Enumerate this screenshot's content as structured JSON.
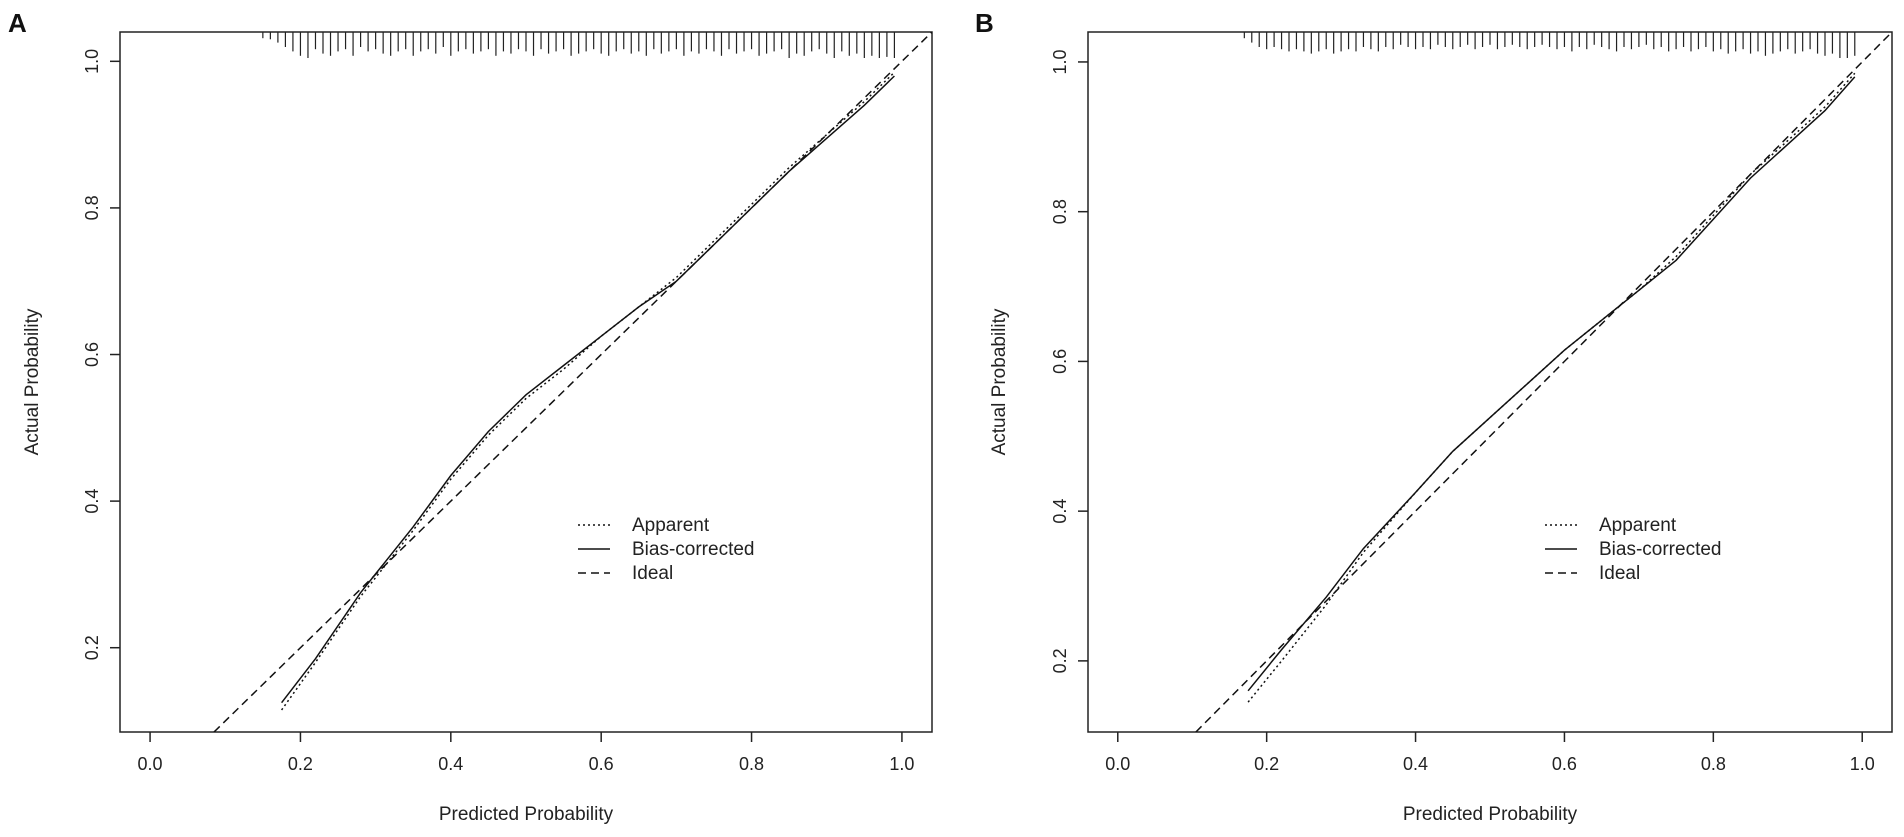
{
  "chart_data": [
    {
      "panel_label": "A",
      "type": "line",
      "xlabel": "Predicted Probability",
      "ylabel": "Actual Probability",
      "xlim": [
        -0.04,
        1.04
      ],
      "ylim": [
        0.085,
        1.04
      ],
      "x_ticks": [
        "0.0",
        "0.2",
        "0.4",
        "0.6",
        "0.8",
        "1.0"
      ],
      "y_ticks": [
        "0.2",
        "0.4",
        "0.6",
        "0.8",
        "1.0"
      ],
      "x_tick_values": [
        0.0,
        0.2,
        0.4,
        0.6,
        0.8,
        1.0
      ],
      "y_tick_values": [
        0.2,
        0.4,
        0.6,
        0.8,
        1.0
      ],
      "legend": {
        "position": "center-right",
        "entries": [
          "Apparent",
          "Bias-corrected",
          "Ideal"
        ]
      },
      "series": [
        {
          "name": "Apparent",
          "style": "dotted",
          "x": [
            0.175,
            0.22,
            0.28,
            0.35,
            0.4,
            0.45,
            0.5,
            0.55,
            0.6,
            0.65,
            0.7,
            0.75,
            0.8,
            0.85,
            0.9,
            0.95,
            0.99
          ],
          "y": [
            0.115,
            0.18,
            0.27,
            0.36,
            0.43,
            0.49,
            0.54,
            0.58,
            0.625,
            0.665,
            0.705,
            0.755,
            0.805,
            0.855,
            0.9,
            0.945,
            0.985
          ]
        },
        {
          "name": "Bias-corrected",
          "style": "solid",
          "x": [
            0.175,
            0.22,
            0.28,
            0.35,
            0.4,
            0.45,
            0.5,
            0.55,
            0.6,
            0.65,
            0.7,
            0.75,
            0.8,
            0.85,
            0.9,
            0.95,
            0.99
          ],
          "y": [
            0.125,
            0.185,
            0.275,
            0.365,
            0.435,
            0.495,
            0.545,
            0.585,
            0.625,
            0.665,
            0.7,
            0.75,
            0.8,
            0.85,
            0.895,
            0.94,
            0.98
          ]
        },
        {
          "name": "Ideal",
          "style": "dashed",
          "x": [
            0.085,
            1.04
          ],
          "y": [
            0.085,
            1.04
          ]
        }
      ],
      "rug": [
        0.15,
        0.16,
        0.17,
        0.18,
        0.19,
        0.2,
        0.21,
        0.22,
        0.23,
        0.24,
        0.25,
        0.26,
        0.27,
        0.28,
        0.29,
        0.3,
        0.31,
        0.32,
        0.33,
        0.34,
        0.35,
        0.36,
        0.37,
        0.38,
        0.39,
        0.4,
        0.41,
        0.42,
        0.43,
        0.44,
        0.45,
        0.46,
        0.47,
        0.48,
        0.49,
        0.5,
        0.51,
        0.52,
        0.53,
        0.54,
        0.55,
        0.56,
        0.57,
        0.58,
        0.59,
        0.6,
        0.61,
        0.62,
        0.63,
        0.64,
        0.65,
        0.66,
        0.67,
        0.68,
        0.69,
        0.7,
        0.71,
        0.72,
        0.73,
        0.74,
        0.75,
        0.76,
        0.77,
        0.78,
        0.79,
        0.8,
        0.81,
        0.82,
        0.83,
        0.84,
        0.85,
        0.86,
        0.87,
        0.88,
        0.89,
        0.9,
        0.91,
        0.92,
        0.93,
        0.94,
        0.95,
        0.96,
        0.97,
        0.98,
        0.99
      ],
      "rug_heights": [
        0.1,
        0.15,
        0.3,
        0.5,
        0.7,
        0.9,
        1.0,
        0.6,
        0.8,
        0.9,
        0.7,
        0.6,
        0.9,
        0.5,
        0.7,
        0.6,
        0.8,
        0.9,
        0.7,
        0.6,
        0.9,
        0.7,
        0.6,
        0.8,
        0.5,
        0.9,
        0.7,
        0.6,
        0.8,
        0.7,
        0.6,
        0.9,
        0.7,
        0.8,
        0.6,
        0.7,
        0.9,
        0.6,
        0.8,
        0.7,
        0.6,
        0.9,
        0.8,
        0.7,
        0.6,
        0.8,
        0.9,
        0.7,
        0.6,
        0.8,
        0.7,
        0.9,
        0.6,
        0.8,
        0.7,
        0.6,
        0.9,
        0.7,
        0.8,
        0.6,
        0.7,
        0.9,
        0.6,
        0.8,
        0.7,
        0.6,
        0.9,
        0.8,
        0.7,
        0.6,
        1.0,
        0.8,
        0.9,
        0.7,
        0.6,
        0.8,
        1.0,
        0.7,
        0.9,
        0.8,
        1.0,
        0.9,
        1.0,
        0.95,
        1.0
      ]
    },
    {
      "panel_label": "B",
      "type": "line",
      "xlabel": "Predicted Probability",
      "ylabel": "Actual Probability",
      "xlim": [
        -0.04,
        1.04
      ],
      "ylim": [
        0.105,
        1.04
      ],
      "x_ticks": [
        "0.0",
        "0.2",
        "0.4",
        "0.6",
        "0.8",
        "1.0"
      ],
      "y_ticks": [
        "0.2",
        "0.4",
        "0.6",
        "0.8",
        "1.0"
      ],
      "x_tick_values": [
        0.0,
        0.2,
        0.4,
        0.6,
        0.8,
        1.0
      ],
      "y_tick_values": [
        0.2,
        0.4,
        0.6,
        0.8,
        1.0
      ],
      "legend": {
        "position": "center-right",
        "entries": [
          "Apparent",
          "Bias-corrected",
          "Ideal"
        ]
      },
      "series": [
        {
          "name": "Apparent",
          "style": "dotted",
          "x": [
            0.175,
            0.22,
            0.28,
            0.33,
            0.4,
            0.45,
            0.5,
            0.55,
            0.6,
            0.65,
            0.7,
            0.75,
            0.8,
            0.85,
            0.9,
            0.95,
            0.99
          ],
          "y": [
            0.145,
            0.2,
            0.275,
            0.345,
            0.425,
            0.48,
            0.525,
            0.57,
            0.615,
            0.655,
            0.695,
            0.74,
            0.795,
            0.85,
            0.895,
            0.94,
            0.985
          ]
        },
        {
          "name": "Bias-corrected",
          "style": "solid",
          "x": [
            0.175,
            0.22,
            0.28,
            0.33,
            0.4,
            0.45,
            0.5,
            0.55,
            0.6,
            0.65,
            0.7,
            0.75,
            0.8,
            0.85,
            0.9,
            0.95,
            0.99
          ],
          "y": [
            0.16,
            0.215,
            0.285,
            0.35,
            0.425,
            0.48,
            0.525,
            0.57,
            0.615,
            0.655,
            0.695,
            0.735,
            0.79,
            0.845,
            0.89,
            0.935,
            0.98
          ]
        },
        {
          "name": "Ideal",
          "style": "dashed",
          "x": [
            0.105,
            1.04
          ],
          "y": [
            0.105,
            1.04
          ]
        }
      ],
      "rug": [
        0.17,
        0.18,
        0.19,
        0.2,
        0.21,
        0.22,
        0.23,
        0.24,
        0.25,
        0.26,
        0.27,
        0.28,
        0.29,
        0.3,
        0.31,
        0.32,
        0.33,
        0.34,
        0.35,
        0.36,
        0.37,
        0.38,
        0.39,
        0.4,
        0.41,
        0.42,
        0.43,
        0.44,
        0.45,
        0.46,
        0.47,
        0.48,
        0.49,
        0.5,
        0.51,
        0.52,
        0.53,
        0.54,
        0.55,
        0.56,
        0.57,
        0.58,
        0.59,
        0.6,
        0.61,
        0.62,
        0.63,
        0.64,
        0.65,
        0.66,
        0.67,
        0.68,
        0.69,
        0.7,
        0.71,
        0.72,
        0.73,
        0.74,
        0.75,
        0.76,
        0.77,
        0.78,
        0.79,
        0.8,
        0.81,
        0.82,
        0.83,
        0.84,
        0.85,
        0.86,
        0.87,
        0.88,
        0.89,
        0.9,
        0.91,
        0.92,
        0.93,
        0.94,
        0.95,
        0.96,
        0.97,
        0.98,
        0.99
      ],
      "rug_heights": [
        0.1,
        0.3,
        0.5,
        0.6,
        0.5,
        0.6,
        0.7,
        0.6,
        0.7,
        0.8,
        0.7,
        0.6,
        0.8,
        0.7,
        0.6,
        0.7,
        0.5,
        0.6,
        0.7,
        0.5,
        0.6,
        0.4,
        0.5,
        0.6,
        0.5,
        0.6,
        0.4,
        0.5,
        0.6,
        0.5,
        0.4,
        0.6,
        0.5,
        0.4,
        0.6,
        0.5,
        0.4,
        0.5,
        0.6,
        0.5,
        0.4,
        0.5,
        0.6,
        0.5,
        0.7,
        0.5,
        0.6,
        0.4,
        0.5,
        0.6,
        0.7,
        0.5,
        0.6,
        0.5,
        0.4,
        0.6,
        0.5,
        0.7,
        0.6,
        0.5,
        0.7,
        0.6,
        0.5,
        0.7,
        0.6,
        0.8,
        0.7,
        0.6,
        0.8,
        0.7,
        0.9,
        0.8,
        0.7,
        0.6,
        0.8,
        0.7,
        0.6,
        0.8,
        0.9,
        0.8,
        1.0,
        1.0,
        0.9
      ]
    }
  ]
}
